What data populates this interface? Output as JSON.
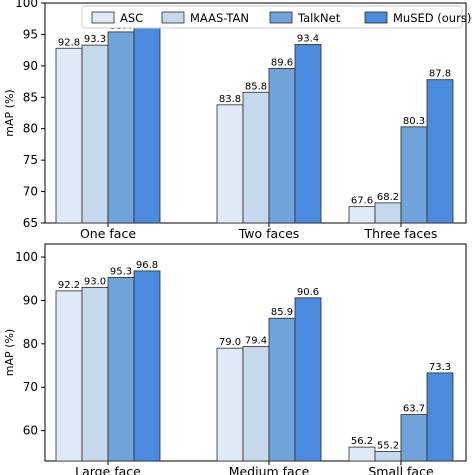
{
  "chart_data": [
    {
      "type": "bar",
      "categories": [
        "One face",
        "Two faces",
        "Three faces"
      ],
      "series": [
        {
          "name": "ASC",
          "values": [
            92.8,
            83.8,
            67.6
          ],
          "color": "#deebf7"
        },
        {
          "name": "MAAS-TAN",
          "values": [
            93.3,
            85.8,
            68.2
          ],
          "color": "#c6d8ec"
        },
        {
          "name": "TalkNet",
          "values": [
            95.4,
            89.6,
            80.3
          ],
          "color": "#6fa3d9"
        },
        {
          "name": "MuSED (ours)",
          "values": [
            96.7,
            93.4,
            87.8
          ],
          "color": "#4a8be0"
        }
      ],
      "ylabel": "mAP (%)",
      "ylim": [
        65,
        100
      ],
      "yticks": [
        65,
        70,
        75,
        80,
        85,
        90,
        95,
        100
      ],
      "legend": "top-right",
      "grid": false
    },
    {
      "type": "bar",
      "categories": [
        "Large face",
        "Medium face",
        "Small face"
      ],
      "series": [
        {
          "name": "ASC",
          "values": [
            92.2,
            79.0,
            56.2
          ],
          "color": "#deebf7"
        },
        {
          "name": "MAAS-TAN",
          "values": [
            93.0,
            79.4,
            55.2
          ],
          "color": "#c6d8ec"
        },
        {
          "name": "TalkNet",
          "values": [
            95.3,
            85.9,
            63.7
          ],
          "color": "#6fa3d9"
        },
        {
          "name": "MuSED (ours)",
          "values": [
            96.8,
            90.6,
            73.3
          ],
          "color": "#4a8be0"
        }
      ],
      "ylabel": "mAP (%)",
      "ylim": [
        53,
        103
      ],
      "yticks": [
        60,
        70,
        80,
        90,
        100
      ],
      "legend": "none",
      "grid": false
    }
  ]
}
